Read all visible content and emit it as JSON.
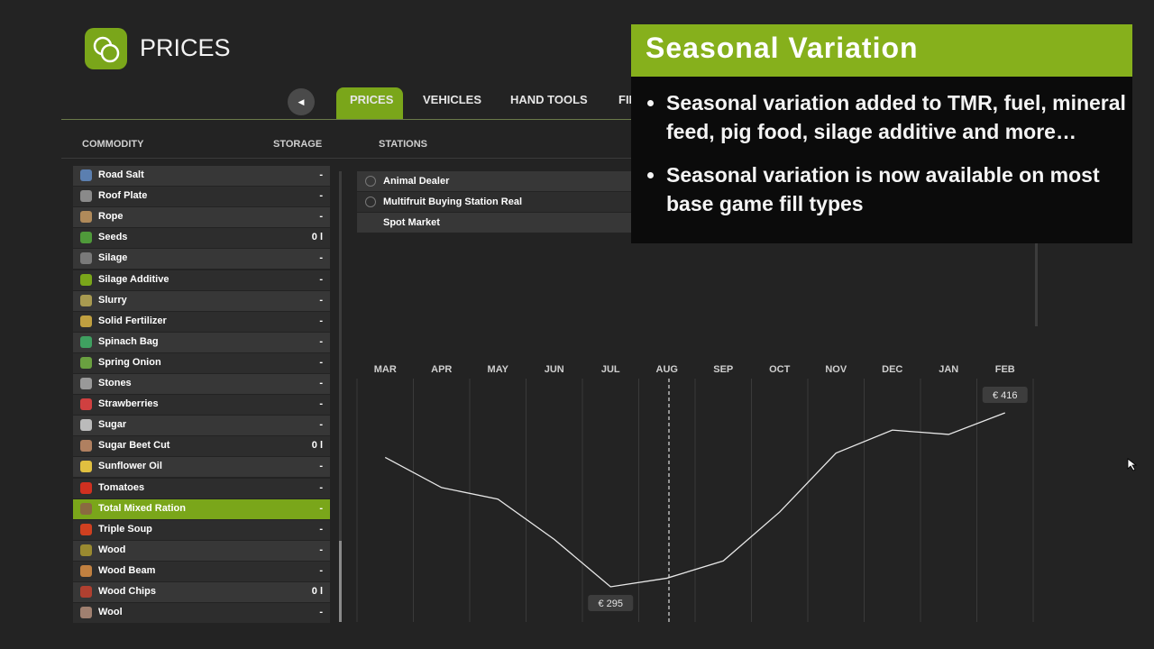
{
  "header": {
    "title": "PRICES"
  },
  "tabs": [
    "PRICES",
    "VEHICLES",
    "HAND TOOLS",
    "FINANCES"
  ],
  "columns": {
    "commodity": "COMMODITY",
    "storage": "STORAGE",
    "stations": "STATIONS"
  },
  "commodities": [
    {
      "name": "Road Salt",
      "storage": "-"
    },
    {
      "name": "Roof Plate",
      "storage": "-"
    },
    {
      "name": "Rope",
      "storage": "-"
    },
    {
      "name": "Seeds",
      "storage": "0 l"
    },
    {
      "name": "Silage",
      "storage": "-"
    },
    {
      "name": "Silage Additive",
      "storage": "-"
    },
    {
      "name": "Slurry",
      "storage": "-"
    },
    {
      "name": "Solid Fertilizer",
      "storage": "-"
    },
    {
      "name": "Spinach Bag",
      "storage": "-"
    },
    {
      "name": "Spring Onion",
      "storage": "-"
    },
    {
      "name": "Stones",
      "storage": "-"
    },
    {
      "name": "Strawberries",
      "storage": "-"
    },
    {
      "name": "Sugar",
      "storage": "-"
    },
    {
      "name": "Sugar Beet Cut",
      "storage": "0 l"
    },
    {
      "name": "Sunflower Oil",
      "storage": "-"
    },
    {
      "name": "Tomatoes",
      "storage": "-"
    },
    {
      "name": "Total Mixed Ration",
      "storage": "-",
      "selected": true
    },
    {
      "name": "Triple Soup",
      "storage": "-"
    },
    {
      "name": "Wood",
      "storage": "-"
    },
    {
      "name": "Wood Beam",
      "storage": "-"
    },
    {
      "name": "Wood Chips",
      "storage": "0 l"
    },
    {
      "name": "Wool",
      "storage": "-"
    }
  ],
  "stations": [
    "Animal Dealer",
    "Multifruit Buying Station Real",
    "Spot Market"
  ],
  "chart_data": {
    "type": "line",
    "categories": [
      "MAR",
      "APR",
      "MAY",
      "JUN",
      "JUL",
      "AUG",
      "SEP",
      "OCT",
      "NOV",
      "DEC",
      "JAN",
      "FEB"
    ],
    "values": [
      385,
      364,
      356,
      328,
      295,
      301,
      313,
      347,
      388,
      404,
      401,
      416
    ],
    "value_labels": [
      null,
      null,
      null,
      null,
      "€ 295",
      null,
      null,
      null,
      null,
      null,
      null,
      "€ 416"
    ],
    "color": "#e8e8e8"
  },
  "overlay": {
    "title": "Seasonal Variation",
    "bullets": [
      "Seasonal variation added to TMR, fuel, mineral feed, pig food, silage additive and more…",
      "Seasonal variation is now available on most base game fill types"
    ]
  }
}
